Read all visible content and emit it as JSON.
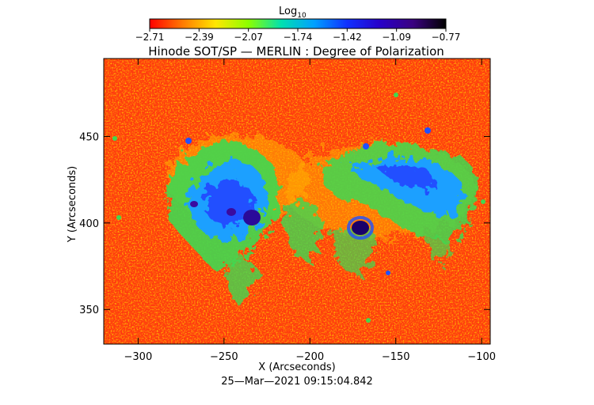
{
  "colorbar": {
    "label_main": "Log",
    "label_sub": "10",
    "tick_labels": [
      "−2.71",
      "−2.39",
      "−2.07",
      "−1.74",
      "−1.42",
      "−1.09",
      "−0.77"
    ],
    "gradient": [
      "#ff0000",
      "#ff7a00",
      "#ffe600",
      "#8cff00",
      "#00e0b0",
      "#00a0ff",
      "#1030ff",
      "#2800c8",
      "#3a0080",
      "#000000"
    ]
  },
  "title": "Hinode SOT/SP — MERLIN : Degree of Polarization",
  "x_axis": {
    "label": "X (Arcseconds)",
    "ticks": [
      "−300",
      "−250",
      "−200",
      "−150",
      "−100"
    ],
    "tick_values": [
      -300,
      -250,
      -200,
      -150,
      -100
    ],
    "range": [
      -320,
      -95
    ]
  },
  "y_axis": {
    "label": "Y (Arcseconds)",
    "ticks": [
      "350",
      "400",
      "450"
    ],
    "tick_values": [
      350,
      400,
      450
    ],
    "range": [
      330,
      495
    ]
  },
  "timestamp": "25—Mar—2021 09:15:04.842",
  "colors": {
    "field_base": "#ff3a10",
    "field_mid": "#ff8a00",
    "field_high": "#ffd800",
    "active_green": "#50e040",
    "active_cyan": "#1aa0ff",
    "active_blue": "#2050ff",
    "spot_dark": "#2a0a9a"
  }
}
